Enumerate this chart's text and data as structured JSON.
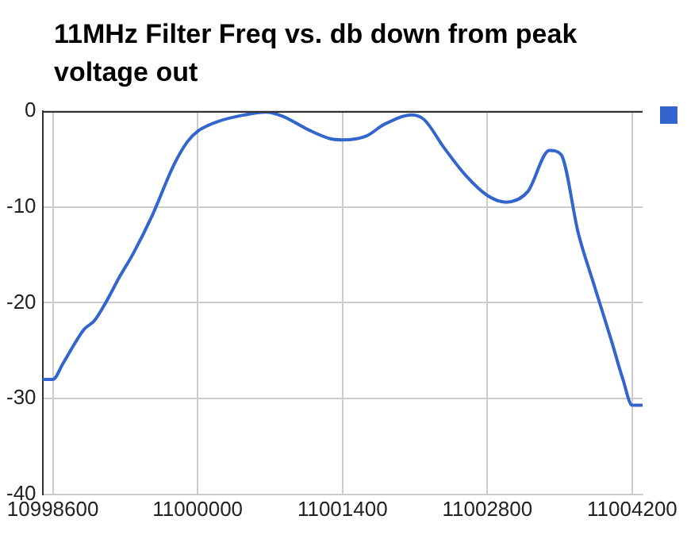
{
  "chart_data": {
    "type": "line",
    "title": "11MHz Filter Freq vs. db down from peak voltage out",
    "x": [
      10998500,
      10998600,
      10998700,
      10998900,
      10999000,
      10999100,
      10999250,
      10999375,
      10999560,
      10999770,
      10999900,
      11000000,
      11000190,
      11000450,
      11000660,
      11000815,
      11001080,
      11001290,
      11001400,
      11001630,
      11001800,
      11002070,
      11002190,
      11002380,
      11002590,
      11002800,
      11002980,
      11003190,
      11003400,
      11003510,
      11003680,
      11003830,
      11004000,
      11004110,
      11004200,
      11004300
    ],
    "series": [
      {
        "color": "#3366cc",
        "values": [
          -28,
          -28,
          -26.3,
          -22.8,
          -21.9,
          -20.2,
          -17.2,
          -14.9,
          -10.9,
          -5.6,
          -3.2,
          -2.1,
          -1.1,
          -0.4,
          -0.1,
          -0.5,
          -2.0,
          -2.9,
          -3.0,
          -2.6,
          -1.4,
          -0.4,
          -0.9,
          -3.8,
          -6.7,
          -8.8,
          -9.5,
          -8.4,
          -4.1,
          -4.5,
          -12.8,
          -18.1,
          -24.0,
          -28.0,
          -30.7,
          -30.7
        ]
      }
    ],
    "xlim": [
      10998500,
      11004300
    ],
    "xticks": [
      10998600,
      11000000,
      11001400,
      11002800,
      11004200
    ],
    "ylim": [
      -40,
      0
    ],
    "yticks": [
      -40,
      -30,
      -20,
      -10,
      0
    ],
    "grid": true,
    "marker": "none",
    "line_style": "solid"
  }
}
